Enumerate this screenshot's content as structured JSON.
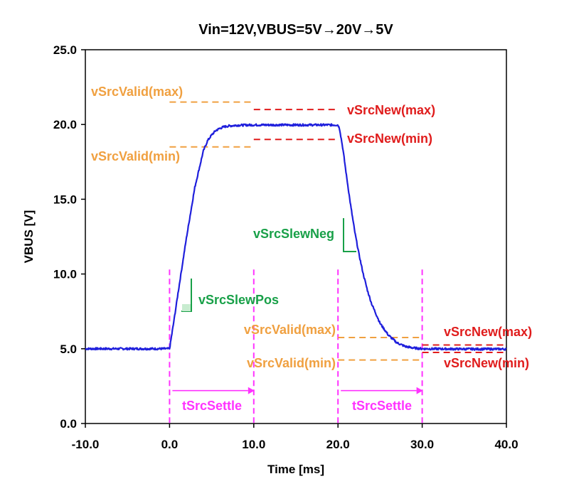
{
  "colors": {
    "trace": "#1f1fdc",
    "valid": "#f0a040",
    "new": "#e01c1c",
    "slew": "#18a048",
    "settle": "#ff33ff",
    "axis": "#000000"
  },
  "chart_data": {
    "type": "line",
    "title": "Vin=12V,VBUS=5V→20V→5V",
    "xlabel": "Time [ms]",
    "ylabel": "VBUS [V]",
    "xlim": [
      -10,
      40
    ],
    "ylim": [
      0,
      25
    ],
    "xticks": [
      "-10.0",
      "0.0",
      "10.0",
      "20.0",
      "30.0",
      "40.0"
    ],
    "yticks": [
      "0.0",
      "5.0",
      "10.0",
      "15.0",
      "20.0",
      "25.0"
    ],
    "grid": false,
    "legend": "none",
    "series": [
      {
        "x": [
          -10,
          0,
          0.5,
          1,
          2,
          3,
          4,
          4.5,
          5,
          5.5,
          6,
          6.5,
          7,
          8,
          10,
          15,
          20,
          20.2,
          20.6,
          21,
          21.5,
          22,
          22.5,
          23,
          23.5,
          24,
          25,
          26,
          27,
          28,
          29,
          30,
          35,
          40
        ],
        "y": [
          5.0,
          5.0,
          6.8,
          8.7,
          12.4,
          15.8,
          18.2,
          18.9,
          19.3,
          19.6,
          19.75,
          19.85,
          19.9,
          19.95,
          19.97,
          19.97,
          19.97,
          19.7,
          18.3,
          16.6,
          14.6,
          12.8,
          11.3,
          10.0,
          8.9,
          8.0,
          6.7,
          5.9,
          5.4,
          5.15,
          5.05,
          5.0,
          4.98,
          4.98
        ]
      }
    ],
    "annotations": {
      "vsrcvalid_max_1": {
        "label": "vSrcValid(max)",
        "y": 21.5,
        "x": [
          0,
          10
        ]
      },
      "vsrcvalid_min_1": {
        "label": "vSrcValid(min)",
        "y": 18.5,
        "x": [
          0,
          10
        ]
      },
      "vsrcnew_max_1": {
        "label": "vSrcNew(max)",
        "y": 21.0,
        "x": [
          10,
          20
        ]
      },
      "vsrcnew_min_1": {
        "label": "vSrcNew(min)",
        "y": 19.0,
        "x": [
          10,
          20
        ]
      },
      "vsrcvalid_max_2": {
        "label": "vSrcValid(max)",
        "y": 5.75,
        "x": [
          20,
          30
        ]
      },
      "vsrcvalid_min_2": {
        "label": "vSrcValid(min)",
        "y": 4.25,
        "x": [
          20,
          30
        ]
      },
      "vsrcnew_max_2": {
        "label": "vSrcNew(max)",
        "y": 5.25,
        "x": [
          30,
          40
        ]
      },
      "vsrcnew_min_2": {
        "label": "vSrcNew(min)",
        "y": 4.75,
        "x": [
          30,
          40
        ]
      },
      "slew_pos": {
        "label": "vSrcSlewPos"
      },
      "slew_neg": {
        "label": "vSrcSlewNeg"
      },
      "settle_1": {
        "label": "tSrcSettle",
        "x": [
          0,
          10
        ]
      },
      "settle_2": {
        "label": "tSrcSettle",
        "x": [
          20,
          30
        ]
      },
      "markers_x": [
        0,
        10,
        20,
        30
      ]
    }
  }
}
